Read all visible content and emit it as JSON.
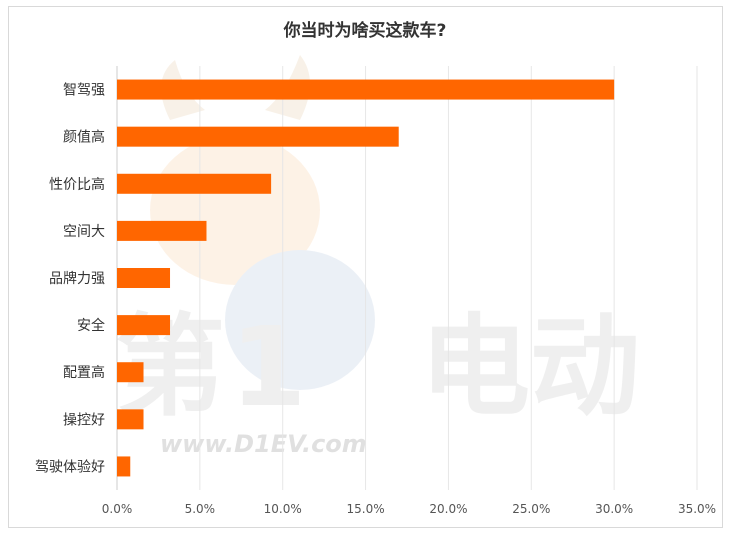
{
  "chart_data": {
    "type": "bar",
    "orientation": "horizontal",
    "title": "你当时为啥买这款车?",
    "categories": [
      "智驾强",
      "颜值高",
      "性价比高",
      "空间大",
      "品牌力强",
      "安全",
      "配置高",
      "操控好",
      "驾驶体验好"
    ],
    "values": [
      30.0,
      17.0,
      9.3,
      5.4,
      3.2,
      3.2,
      1.6,
      1.6,
      0.8
    ],
    "xlim": [
      0,
      35
    ],
    "xticks": [
      0,
      5,
      10,
      15,
      20,
      25,
      30,
      35
    ],
    "xtick_labels": [
      "0.0%",
      "5.0%",
      "10.0%",
      "15.0%",
      "20.0%",
      "25.0%",
      "30.0%",
      "35.0%"
    ],
    "xlabel": "",
    "ylabel": "",
    "grid": true,
    "bar_color": "#FF6600",
    "watermark_text": "www.D1EV.com"
  }
}
